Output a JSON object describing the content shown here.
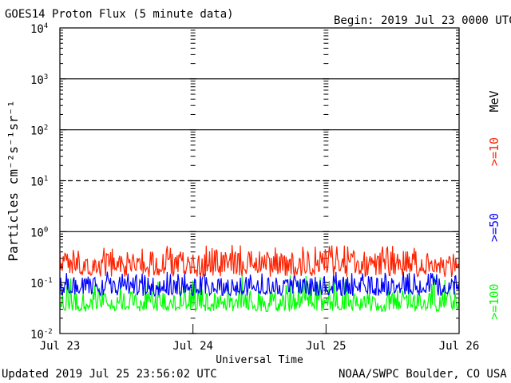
{
  "header": {
    "title": "GOES14 Proton Flux (5 minute data)",
    "begin": "Begin: 2019 Jul 23 0000 UTC"
  },
  "footer": {
    "updated": "Updated 2019 Jul 25 23:56:02 UTC",
    "source": "NOAA/SWPC Boulder, CO USA"
  },
  "chart_data": {
    "type": "line",
    "title": "GOES14 Proton Flux (5 minute data)",
    "xlabel": "Universal Time",
    "ylabel": "Particles cm⁻²s⁻¹sr⁻¹",
    "yscale": "log",
    "ylim": [
      0.01,
      10000
    ],
    "xlim": [
      "2019-07-23",
      "2019-07-26"
    ],
    "x_ticks": [
      "Jul 23",
      "Jul 24",
      "Jul 25",
      "Jul 26"
    ],
    "y_ticks": [
      {
        "base": "10",
        "exp": "-2"
      },
      {
        "base": "10",
        "exp": "-1"
      },
      {
        "base": "10",
        "exp": "0"
      },
      {
        "base": "10",
        "exp": "1"
      },
      {
        "base": "10",
        "exp": "2"
      },
      {
        "base": "10",
        "exp": "3"
      },
      {
        "base": "10",
        "exp": "4"
      }
    ],
    "reference_lines": [
      {
        "y": 1,
        "style": "solid"
      },
      {
        "y": 10,
        "style": "dashed"
      },
      {
        "y": 100,
        "style": "solid"
      },
      {
        "y": 1000,
        "style": "solid"
      }
    ],
    "legend_unit": "MeV",
    "series": [
      {
        "name": ">=10",
        "color": "#ff2200",
        "typical_value": 0.25,
        "range": [
          0.13,
          0.55
        ]
      },
      {
        "name": ">=50",
        "color": "#0000ff",
        "typical_value": 0.09,
        "range": [
          0.055,
          0.17
        ]
      },
      {
        "name": ">=100",
        "color": "#00ff00",
        "typical_value": 0.045,
        "range": [
          0.027,
          0.14
        ]
      }
    ],
    "grid": false,
    "legend_position": "right"
  }
}
